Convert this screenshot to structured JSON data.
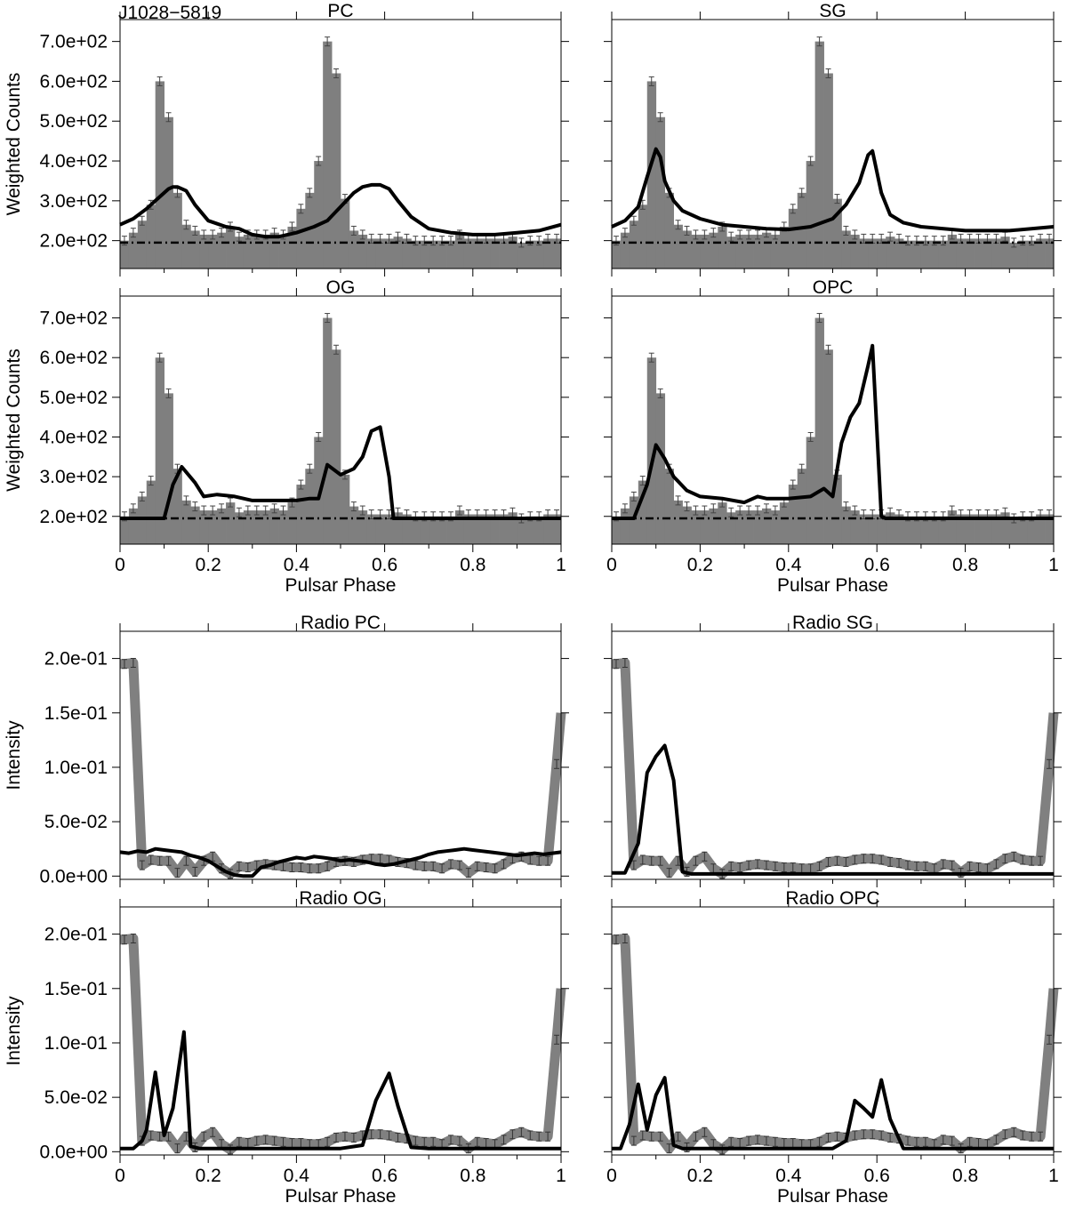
{
  "figure": {
    "title": "J1028−5819"
  },
  "chart_data": [
    {
      "type": "bar",
      "id": "gamma-pc",
      "title": "PC",
      "xlabel": "",
      "ylabel": "Weighted Counts",
      "xlim": [
        0,
        1
      ],
      "ylim": [
        130,
        755
      ],
      "xticks": [
        0,
        0.2,
        0.4,
        0.6,
        0.8,
        1
      ],
      "xticklabels": [
        "",
        "",
        "",
        "",
        "",
        ""
      ],
      "yticks": [
        200,
        300,
        400,
        500,
        600,
        700
      ],
      "yticklabels": [
        "2.0e+02",
        "3.0e+02",
        "4.0e+02",
        "5.0e+02",
        "6.0e+02",
        "7.0e+02"
      ],
      "bins": 50,
      "values": [
        200,
        220,
        250,
        290,
        600,
        510,
        320,
        240,
        225,
        215,
        215,
        220,
        235,
        210,
        215,
        215,
        215,
        220,
        215,
        235,
        280,
        320,
        400,
        700,
        620,
        305,
        225,
        215,
        205,
        205,
        205,
        210,
        205,
        200,
        200,
        200,
        200,
        200,
        215,
        205,
        205,
        205,
        205,
        205,
        210,
        195,
        200,
        200,
        205,
        205
      ],
      "background": 195,
      "model": {
        "x": [
          0,
          0.03,
          0.06,
          0.09,
          0.11,
          0.12,
          0.13,
          0.15,
          0.17,
          0.2,
          0.24,
          0.27,
          0.3,
          0.33,
          0.36,
          0.4,
          0.44,
          0.47,
          0.5,
          0.53,
          0.55,
          0.57,
          0.59,
          0.61,
          0.63,
          0.66,
          0.7,
          0.75,
          0.8,
          0.85,
          0.9,
          0.95,
          1
        ],
        "y": [
          240,
          255,
          280,
          310,
          330,
          335,
          335,
          325,
          290,
          250,
          235,
          230,
          215,
          210,
          210,
          220,
          235,
          250,
          285,
          320,
          335,
          340,
          340,
          330,
          300,
          260,
          230,
          220,
          215,
          215,
          220,
          225,
          240
        ]
      }
    },
    {
      "type": "bar",
      "id": "gamma-sg",
      "title": "SG",
      "xlabel": "",
      "ylabel": "",
      "xlim": [
        0,
        1
      ],
      "ylim": [
        130,
        755
      ],
      "xticks": [
        0,
        0.2,
        0.4,
        0.6,
        0.8,
        1
      ],
      "xticklabels": [
        "",
        "",
        "",
        "",
        "",
        ""
      ],
      "yticks": [
        200,
        300,
        400,
        500,
        600,
        700
      ],
      "yticklabels": [
        "",
        "",
        "",
        "",
        "",
        ""
      ],
      "bins": 50,
      "values": [
        200,
        220,
        250,
        290,
        600,
        510,
        320,
        240,
        225,
        215,
        215,
        220,
        235,
        210,
        215,
        215,
        215,
        220,
        215,
        235,
        280,
        320,
        400,
        700,
        620,
        305,
        225,
        215,
        205,
        205,
        205,
        210,
        205,
        200,
        200,
        200,
        200,
        200,
        215,
        205,
        205,
        205,
        205,
        205,
        210,
        195,
        200,
        200,
        205,
        205
      ],
      "background": 195,
      "model": {
        "x": [
          0,
          0.03,
          0.06,
          0.08,
          0.1,
          0.11,
          0.12,
          0.14,
          0.16,
          0.2,
          0.25,
          0.3,
          0.35,
          0.4,
          0.45,
          0.5,
          0.53,
          0.56,
          0.58,
          0.59,
          0.61,
          0.63,
          0.66,
          0.7,
          0.8,
          0.9,
          1
        ],
        "y": [
          235,
          250,
          285,
          360,
          430,
          410,
          350,
          300,
          275,
          255,
          240,
          235,
          230,
          228,
          235,
          255,
          290,
          345,
          415,
          425,
          320,
          265,
          245,
          235,
          225,
          225,
          235
        ]
      }
    },
    {
      "type": "bar",
      "id": "gamma-og",
      "title": "OG",
      "xlabel": "Pulsar Phase",
      "ylabel": "Weighted Counts",
      "xlim": [
        0,
        1
      ],
      "ylim": [
        130,
        755
      ],
      "xticks": [
        0,
        0.2,
        0.4,
        0.6,
        0.8,
        1
      ],
      "xticklabels": [
        "0",
        "0.2",
        "0.4",
        "0.6",
        "0.8",
        "1"
      ],
      "yticks": [
        200,
        300,
        400,
        500,
        600,
        700
      ],
      "yticklabels": [
        "2.0e+02",
        "3.0e+02",
        "4.0e+02",
        "5.0e+02",
        "6.0e+02",
        "7.0e+02"
      ],
      "bins": 50,
      "values": [
        200,
        220,
        250,
        290,
        600,
        510,
        320,
        240,
        225,
        215,
        215,
        220,
        235,
        210,
        215,
        215,
        215,
        220,
        215,
        235,
        280,
        320,
        400,
        700,
        620,
        305,
        225,
        215,
        205,
        205,
        205,
        210,
        205,
        200,
        200,
        200,
        200,
        200,
        215,
        205,
        205,
        205,
        205,
        205,
        210,
        195,
        200,
        200,
        205,
        205
      ],
      "background": 195,
      "model": {
        "x": [
          0,
          0.05,
          0.1,
          0.12,
          0.14,
          0.17,
          0.19,
          0.22,
          0.26,
          0.3,
          0.35,
          0.4,
          0.43,
          0.45,
          0.47,
          0.5,
          0.53,
          0.55,
          0.57,
          0.59,
          0.61,
          0.62,
          0.66,
          1
        ],
        "y": [
          195,
          195,
          195,
          280,
          325,
          285,
          250,
          255,
          250,
          240,
          240,
          240,
          245,
          245,
          330,
          305,
          320,
          350,
          415,
          425,
          300,
          195,
          195,
          195
        ]
      }
    },
    {
      "type": "bar",
      "id": "gamma-opc",
      "title": "OPC",
      "xlabel": "Pulsar Phase",
      "ylabel": "",
      "xlim": [
        0,
        1
      ],
      "ylim": [
        130,
        755
      ],
      "xticks": [
        0,
        0.2,
        0.4,
        0.6,
        0.8,
        1
      ],
      "xticklabels": [
        "0",
        "0.2",
        "0.4",
        "0.6",
        "0.8",
        "1"
      ],
      "yticks": [
        200,
        300,
        400,
        500,
        600,
        700
      ],
      "yticklabels": [
        "",
        "",
        "",
        "",
        "",
        ""
      ],
      "bins": 50,
      "values": [
        200,
        220,
        250,
        290,
        600,
        510,
        320,
        240,
        225,
        215,
        215,
        220,
        235,
        210,
        215,
        215,
        215,
        220,
        215,
        235,
        280,
        320,
        400,
        700,
        620,
        305,
        225,
        215,
        205,
        205,
        205,
        210,
        205,
        200,
        200,
        200,
        200,
        200,
        215,
        205,
        205,
        205,
        205,
        205,
        210,
        195,
        200,
        200,
        205,
        205
      ],
      "background": 195,
      "model": {
        "x": [
          0,
          0.05,
          0.08,
          0.1,
          0.12,
          0.14,
          0.17,
          0.2,
          0.25,
          0.3,
          0.33,
          0.35,
          0.4,
          0.45,
          0.48,
          0.5,
          0.52,
          0.54,
          0.56,
          0.58,
          0.59,
          0.61,
          0.62,
          1
        ],
        "y": [
          195,
          195,
          280,
          380,
          345,
          300,
          265,
          250,
          245,
          235,
          250,
          245,
          245,
          250,
          270,
          250,
          385,
          450,
          485,
          580,
          630,
          200,
          195,
          195
        ]
      }
    },
    {
      "type": "line",
      "id": "radio-pc",
      "title": "Radio PC",
      "xlabel": "",
      "ylabel": "Intensity",
      "xlim": [
        0,
        1
      ],
      "ylim": [
        -0.003,
        0.225
      ],
      "xticks": [
        0,
        0.2,
        0.4,
        0.6,
        0.8,
        1
      ],
      "xticklabels": [
        "",
        "",
        "",
        "",
        "",
        ""
      ],
      "yticks": [
        0,
        0.05,
        0.1,
        0.15,
        0.2
      ],
      "yticklabels": [
        "0.0e+00",
        "5.0e-02",
        "1.0e-01",
        "1.5e-01",
        "2.0e-01"
      ],
      "bins": 50,
      "values": [
        0.195,
        0.196,
        0.01,
        0.015,
        0.014,
        0.014,
        0.003,
        0.014,
        0.004,
        0.014,
        0.018,
        0.007,
        0.002,
        0.009,
        0.008,
        0.01,
        0.011,
        0.01,
        0.009,
        0.008,
        0.008,
        0.007,
        0.007,
        0.009,
        0.013,
        0.014,
        0.013,
        0.015,
        0.016,
        0.016,
        0.015,
        0.013,
        0.012,
        0.01,
        0.009,
        0.009,
        0.007,
        0.011,
        0.01,
        0.003,
        0.009,
        0.008,
        0.007,
        0.011,
        0.016,
        0.018,
        0.015,
        0.014,
        0.014,
        0.103
      ],
      "background": null,
      "model": {
        "x": [
          0,
          0.02,
          0.04,
          0.06,
          0.08,
          0.1,
          0.12,
          0.14,
          0.16,
          0.18,
          0.2,
          0.22,
          0.24,
          0.26,
          0.28,
          0.3,
          0.32,
          0.34,
          0.36,
          0.38,
          0.4,
          0.42,
          0.44,
          0.46,
          0.48,
          0.5,
          0.52,
          0.54,
          0.56,
          0.58,
          0.6,
          0.62,
          0.64,
          0.66,
          0.68,
          0.7,
          0.72,
          0.74,
          0.76,
          0.78,
          0.8,
          0.82,
          0.84,
          0.86,
          0.88,
          0.9,
          0.92,
          0.94,
          0.96,
          0.98,
          1
        ],
        "y": [
          0.022,
          0.021,
          0.023,
          0.022,
          0.025,
          0.024,
          0.023,
          0.022,
          0.019,
          0.017,
          0.014,
          0.009,
          0.004,
          0.001,
          0.0,
          0.0,
          0.008,
          0.01,
          0.013,
          0.015,
          0.017,
          0.016,
          0.018,
          0.017,
          0.016,
          0.014,
          0.015,
          0.014,
          0.013,
          0.011,
          0.01,
          0.011,
          0.013,
          0.015,
          0.017,
          0.02,
          0.022,
          0.023,
          0.024,
          0.025,
          0.024,
          0.023,
          0.022,
          0.021,
          0.02,
          0.019,
          0.02,
          0.021,
          0.02,
          0.021,
          0.022
        ]
      }
    },
    {
      "type": "line",
      "id": "radio-sg",
      "title": "Radio SG",
      "xlabel": "",
      "ylabel": "",
      "xlim": [
        0,
        1
      ],
      "ylim": [
        -0.003,
        0.225
      ],
      "xticks": [
        0,
        0.2,
        0.4,
        0.6,
        0.8,
        1
      ],
      "xticklabels": [
        "",
        "",
        "",
        "",
        "",
        ""
      ],
      "yticks": [
        0,
        0.05,
        0.1,
        0.15,
        0.2
      ],
      "yticklabels": [
        "",
        "",
        "",
        "",
        ""
      ],
      "bins": 50,
      "values": [
        0.195,
        0.196,
        0.01,
        0.015,
        0.014,
        0.014,
        0.003,
        0.014,
        0.004,
        0.014,
        0.018,
        0.007,
        0.002,
        0.009,
        0.008,
        0.01,
        0.011,
        0.01,
        0.009,
        0.008,
        0.008,
        0.007,
        0.007,
        0.009,
        0.013,
        0.014,
        0.013,
        0.015,
        0.016,
        0.016,
        0.015,
        0.013,
        0.012,
        0.01,
        0.009,
        0.009,
        0.007,
        0.011,
        0.01,
        0.003,
        0.009,
        0.008,
        0.007,
        0.011,
        0.016,
        0.018,
        0.015,
        0.014,
        0.014,
        0.103
      ],
      "background": null,
      "model": {
        "x": [
          0,
          0.03,
          0.06,
          0.08,
          0.1,
          0.12,
          0.14,
          0.16,
          0.18,
          0.2,
          0.25,
          1
        ],
        "y": [
          0.003,
          0.003,
          0.03,
          0.095,
          0.11,
          0.12,
          0.088,
          0.004,
          0.002,
          0.002,
          0.002,
          0.002
        ]
      }
    },
    {
      "type": "line",
      "id": "radio-og",
      "title": "Radio OG",
      "xlabel": "Pulsar Phase",
      "ylabel": "Intensity",
      "xlim": [
        0,
        1
      ],
      "ylim": [
        -0.003,
        0.225
      ],
      "xticks": [
        0,
        0.2,
        0.4,
        0.6,
        0.8,
        1
      ],
      "xticklabels": [
        "0",
        "0.2",
        "0.4",
        "0.6",
        "0.8",
        "1"
      ],
      "yticks": [
        0,
        0.05,
        0.1,
        0.15,
        0.2
      ],
      "yticklabels": [
        "0.0e+00",
        "5.0e-02",
        "1.0e-01",
        "1.5e-01",
        "2.0e-01"
      ],
      "bins": 50,
      "values": [
        0.195,
        0.196,
        0.01,
        0.015,
        0.014,
        0.014,
        0.003,
        0.014,
        0.004,
        0.014,
        0.018,
        0.007,
        0.002,
        0.009,
        0.008,
        0.01,
        0.011,
        0.01,
        0.009,
        0.008,
        0.008,
        0.007,
        0.007,
        0.009,
        0.013,
        0.014,
        0.013,
        0.015,
        0.016,
        0.016,
        0.015,
        0.013,
        0.012,
        0.01,
        0.009,
        0.009,
        0.007,
        0.011,
        0.01,
        0.003,
        0.009,
        0.008,
        0.007,
        0.011,
        0.016,
        0.018,
        0.015,
        0.014,
        0.014,
        0.103
      ],
      "background": null,
      "model": {
        "x": [
          0,
          0.03,
          0.05,
          0.06,
          0.08,
          0.1,
          0.12,
          0.145,
          0.16,
          0.18,
          0.2,
          0.5,
          0.55,
          0.58,
          0.61,
          0.63,
          0.66,
          0.7,
          1
        ],
        "y": [
          0.003,
          0.003,
          0.01,
          0.02,
          0.073,
          0.015,
          0.04,
          0.11,
          0.005,
          0.003,
          0.003,
          0.003,
          0.006,
          0.047,
          0.072,
          0.042,
          0.004,
          0.003,
          0.003
        ]
      }
    },
    {
      "type": "line",
      "id": "radio-opc",
      "title": "Radio OPC",
      "xlabel": "Pulsar Phase",
      "ylabel": "",
      "xlim": [
        0,
        1
      ],
      "ylim": [
        -0.003,
        0.225
      ],
      "xticks": [
        0,
        0.2,
        0.4,
        0.6,
        0.8,
        1
      ],
      "xticklabels": [
        "0",
        "0.2",
        "0.4",
        "0.6",
        "0.8",
        "1"
      ],
      "yticks": [
        0,
        0.05,
        0.1,
        0.15,
        0.2
      ],
      "yticklabels": [
        "",
        "",
        "",
        "",
        ""
      ],
      "bins": 50,
      "values": [
        0.195,
        0.196,
        0.01,
        0.015,
        0.014,
        0.014,
        0.003,
        0.014,
        0.004,
        0.014,
        0.018,
        0.007,
        0.002,
        0.009,
        0.008,
        0.01,
        0.011,
        0.01,
        0.009,
        0.008,
        0.008,
        0.007,
        0.007,
        0.009,
        0.013,
        0.014,
        0.013,
        0.015,
        0.016,
        0.016,
        0.015,
        0.013,
        0.012,
        0.01,
        0.009,
        0.009,
        0.007,
        0.011,
        0.01,
        0.003,
        0.009,
        0.008,
        0.007,
        0.011,
        0.016,
        0.018,
        0.015,
        0.014,
        0.014,
        0.103
      ],
      "background": null,
      "model": {
        "x": [
          0,
          0.02,
          0.04,
          0.06,
          0.08,
          0.1,
          0.12,
          0.14,
          0.16,
          0.2,
          0.5,
          0.53,
          0.55,
          0.57,
          0.59,
          0.61,
          0.63,
          0.66,
          0.7,
          1
        ],
        "y": [
          0.003,
          0.003,
          0.025,
          0.062,
          0.02,
          0.052,
          0.068,
          0.006,
          0.003,
          0.003,
          0.003,
          0.01,
          0.047,
          0.04,
          0.032,
          0.066,
          0.03,
          0.003,
          0.003,
          0.003
        ]
      }
    }
  ]
}
